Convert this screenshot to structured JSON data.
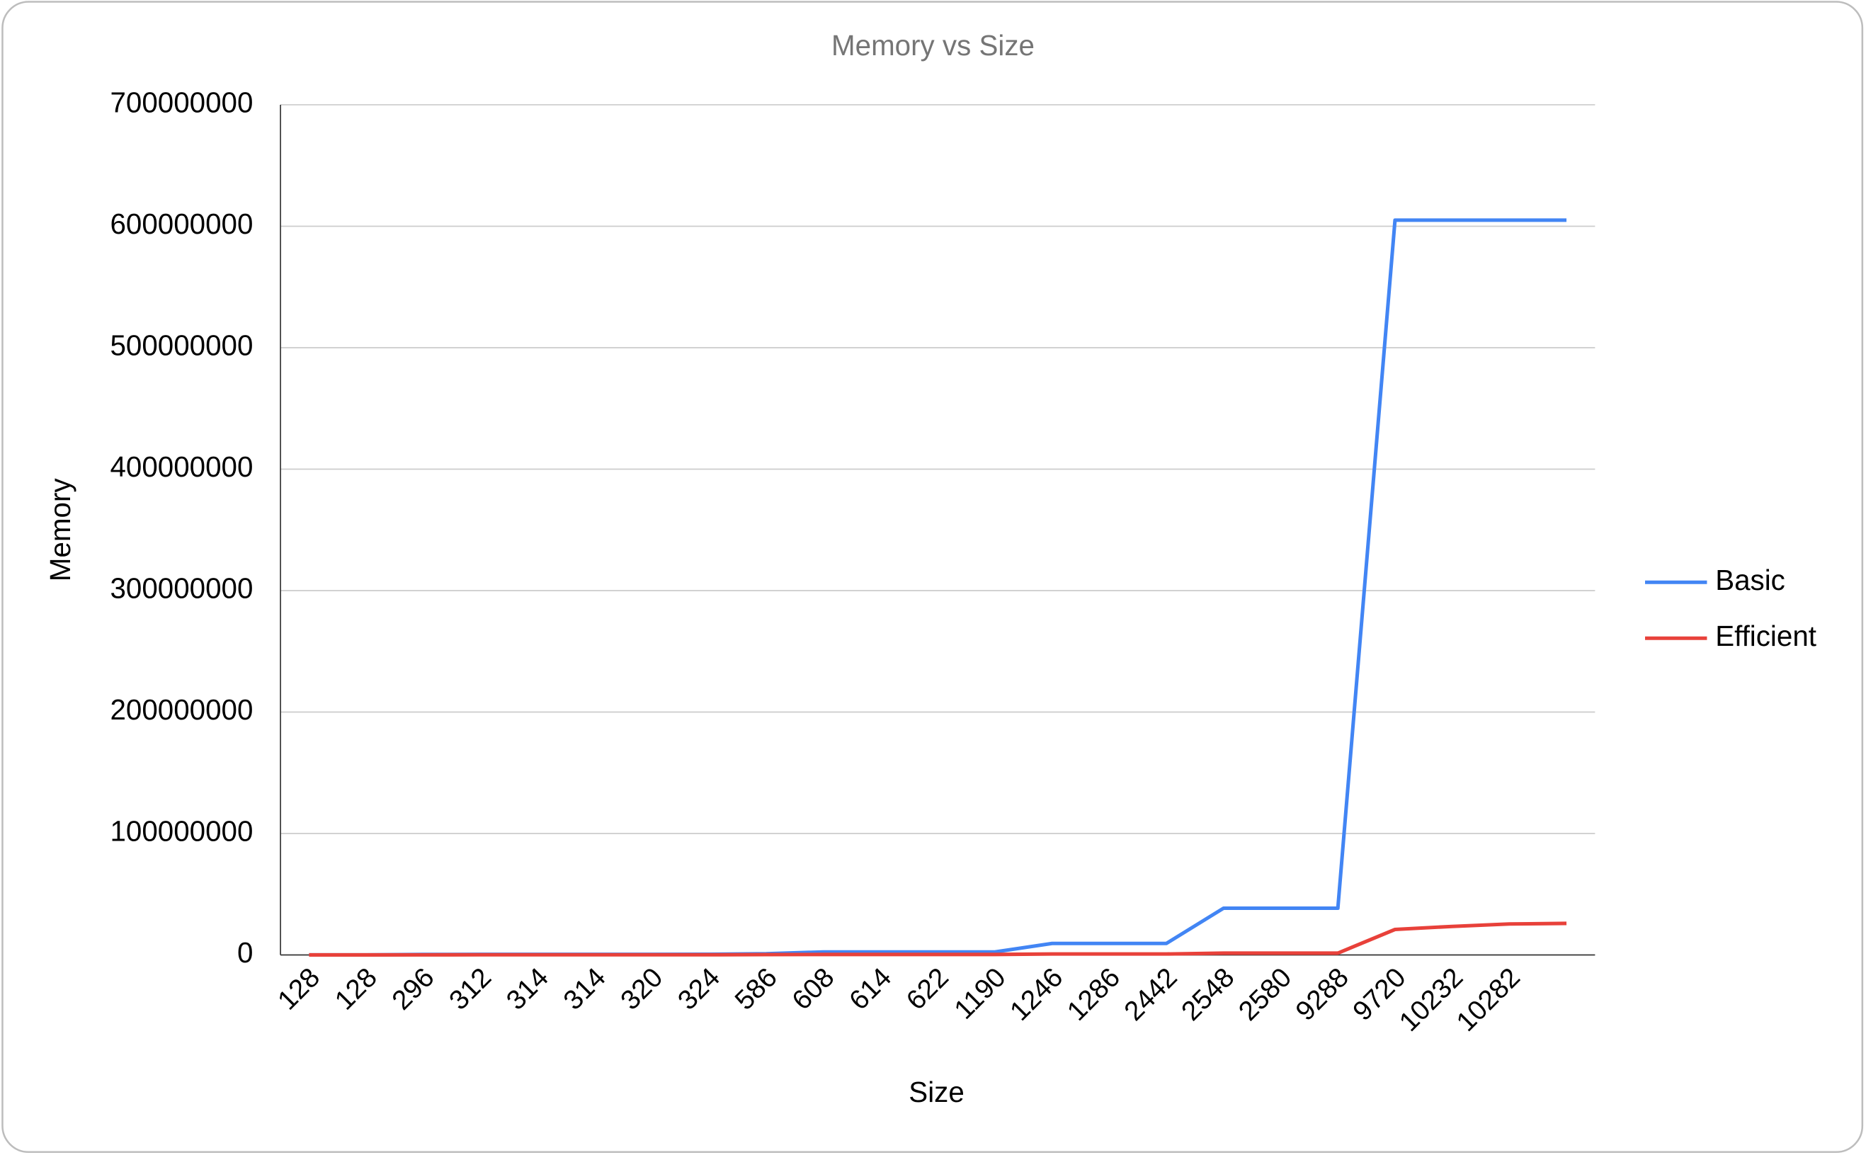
{
  "chart_data": {
    "type": "line",
    "title": "Memory vs Size",
    "x_label": "Size",
    "y_label": "Memory",
    "categories": [
      "128",
      "128",
      "296",
      "312",
      "314",
      "314",
      "320",
      "324",
      "586",
      "608",
      "614",
      "622",
      "1190",
      "1246",
      "1286",
      "2442",
      "2548",
      "2580",
      "9288",
      "9720",
      "10232",
      "10282",
      null
    ],
    "series": [
      {
        "name": "Basic",
        "color": "#4285f4",
        "values": [
          100000,
          100000,
          400000,
          500000,
          500000,
          500000,
          500000,
          600000,
          1000000,
          2500000,
          2500000,
          2500000,
          2500000,
          9500000,
          9500000,
          9500000,
          38500000,
          38500000,
          38500000,
          605000000,
          605000000,
          605000000,
          605000000
        ]
      },
      {
        "name": "Efficient",
        "color": "#e8413a",
        "values": [
          50000,
          50000,
          100000,
          150000,
          150000,
          150000,
          150000,
          150000,
          300000,
          400000,
          400000,
          400000,
          400000,
          800000,
          800000,
          800000,
          1500000,
          1500000,
          1500000,
          21000000,
          23500000,
          25500000,
          26000000
        ]
      }
    ],
    "ylim": [
      0,
      700000000
    ],
    "yticks": [
      0,
      100000000,
      200000000,
      300000000,
      400000000,
      500000000,
      600000000,
      700000000
    ],
    "grid": true,
    "legend": "right"
  }
}
